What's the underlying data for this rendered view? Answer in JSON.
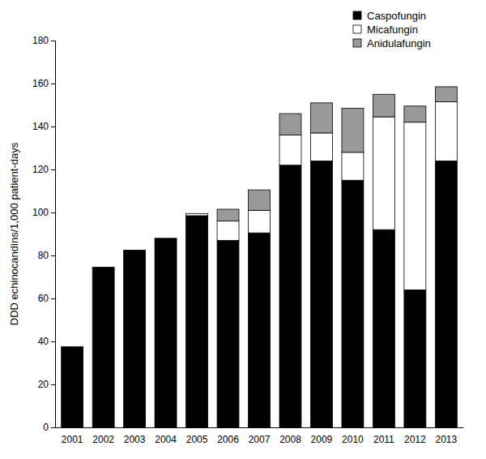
{
  "chart_data": {
    "type": "bar",
    "stacked": true,
    "y_label": "DDD echinocandins/1,000 patient-days",
    "categories": [
      "2001",
      "2002",
      "2003",
      "2004",
      "2005",
      "2006",
      "2007",
      "2008",
      "2009",
      "2010",
      "2011",
      "2012",
      "2013"
    ],
    "series": [
      {
        "name": "Caspofungin",
        "color": "#000000",
        "values": [
          37.5,
          74.5,
          82.5,
          88,
          98.5,
          87,
          90.5,
          122,
          124,
          115,
          92,
          64,
          124
        ]
      },
      {
        "name": "Micafungin",
        "color": "#ffffff",
        "values": [
          0,
          0,
          0,
          0,
          1,
          9,
          10.5,
          14,
          13,
          13,
          52.5,
          78,
          27.5
        ]
      },
      {
        "name": "Anidulafungin",
        "color": "#999999",
        "values": [
          0,
          0,
          0,
          0,
          0,
          5.5,
          9.5,
          10,
          14,
          20.5,
          10.5,
          7.5,
          7
        ]
      }
    ],
    "ylim": [
      0,
      180
    ],
    "yticks": [
      0,
      20,
      40,
      60,
      80,
      100,
      120,
      140,
      160,
      180
    ],
    "grid": false,
    "legend": "top-right"
  }
}
